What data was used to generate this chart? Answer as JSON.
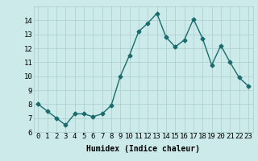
{
  "x": [
    0,
    1,
    2,
    3,
    4,
    5,
    6,
    7,
    8,
    9,
    10,
    11,
    12,
    13,
    14,
    15,
    16,
    17,
    18,
    19,
    20,
    21,
    22,
    23
  ],
  "y": [
    8.0,
    7.5,
    7.0,
    6.5,
    7.3,
    7.3,
    7.1,
    7.3,
    7.9,
    10.0,
    11.5,
    13.2,
    13.8,
    14.5,
    12.8,
    12.1,
    12.6,
    14.1,
    12.7,
    10.8,
    12.2,
    11.0,
    9.9,
    9.3
  ],
  "line_color": "#1a6b6b",
  "marker": "D",
  "marker_size": 2.5,
  "background_color": "#cceaea",
  "grid_color": "#aacccc",
  "xlabel": "Humidex (Indice chaleur)",
  "ylim": [
    6,
    15
  ],
  "xlim": [
    -0.5,
    23.5
  ],
  "yticks": [
    6,
    7,
    8,
    9,
    10,
    11,
    12,
    13,
    14
  ],
  "xticks": [
    0,
    1,
    2,
    3,
    4,
    5,
    6,
    7,
    8,
    9,
    10,
    11,
    12,
    13,
    14,
    15,
    16,
    17,
    18,
    19,
    20,
    21,
    22,
    23
  ],
  "xlabel_fontsize": 7,
  "tick_fontsize": 6.5
}
